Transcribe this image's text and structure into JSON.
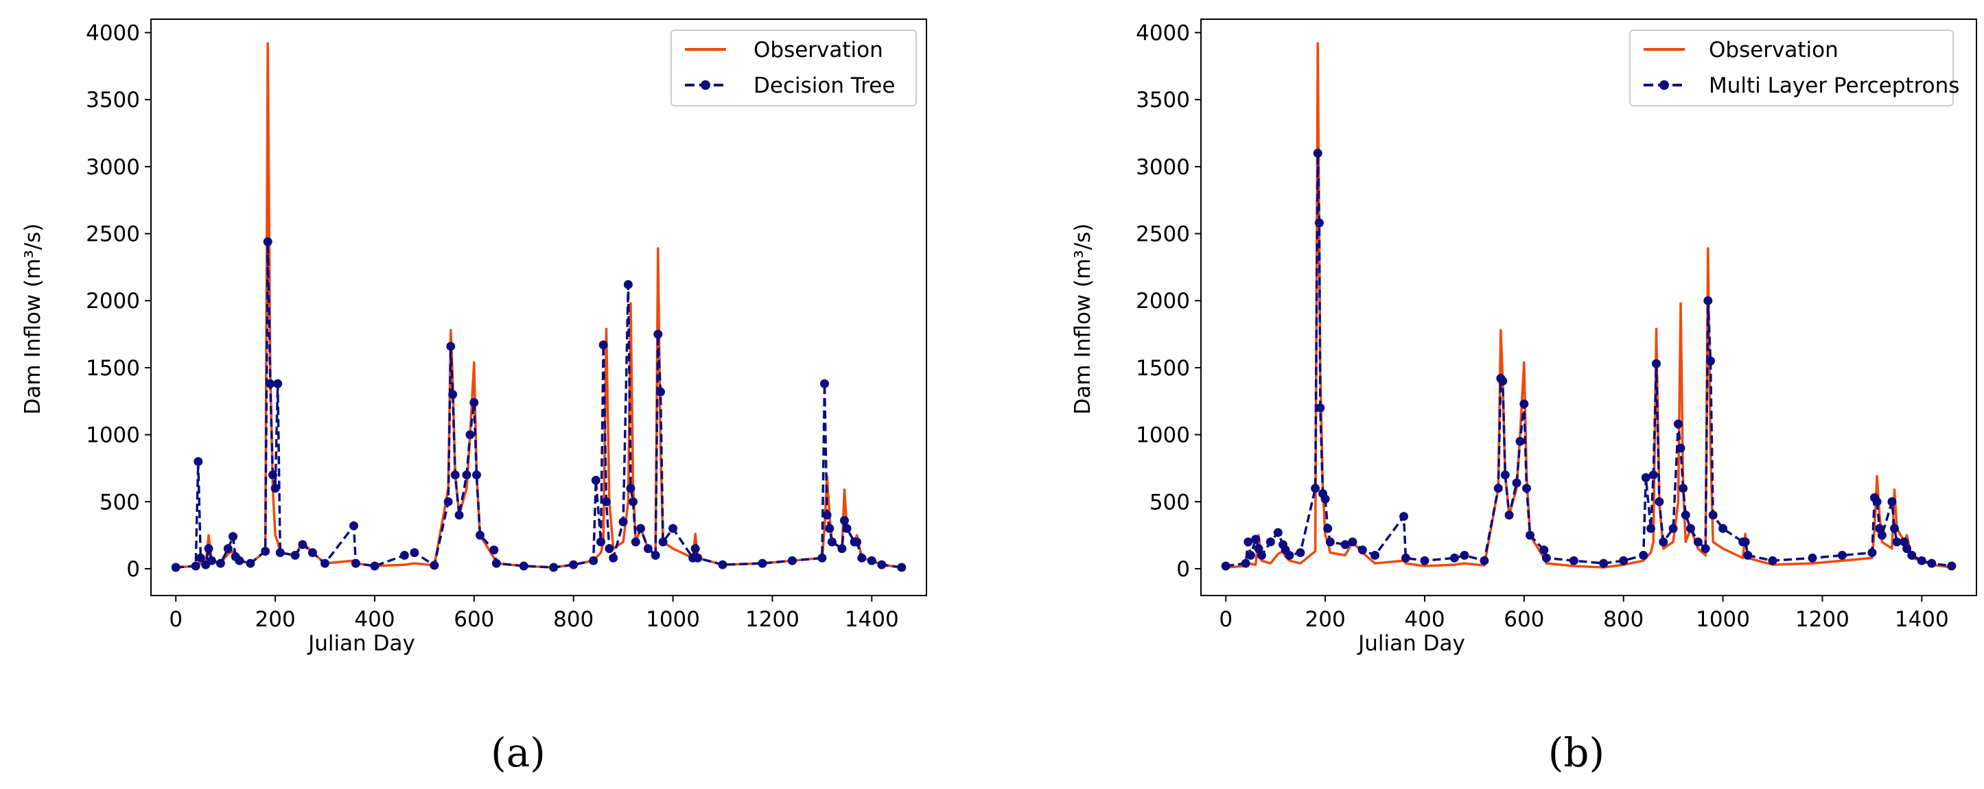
{
  "chart_data": [
    {
      "type": "line",
      "panel_label": "(a)",
      "xlabel": "Julian Day",
      "ylabel": "Dam Inflow (m³/s)",
      "xlim": [
        -50,
        1510
      ],
      "ylim": [
        -200,
        4100
      ],
      "xticks": [
        "0",
        "200",
        "400",
        "600",
        "800",
        "1000",
        "1200",
        "1400"
      ],
      "yticks": [
        "0",
        "500",
        "1000",
        "1500",
        "2000",
        "2500",
        "3000",
        "3500",
        "4000"
      ],
      "legend_position": "top-right",
      "observation": {
        "name": "Observation",
        "color": "#f04a0a",
        "x": [
          0,
          40,
          45,
          60,
          66,
          72,
          90,
          105,
          115,
          120,
          128,
          150,
          180,
          185,
          190,
          195,
          200,
          205,
          210,
          240,
          255,
          275,
          300,
          358,
          362,
          400,
          460,
          480,
          520,
          548,
          553,
          557,
          562,
          570,
          585,
          592,
          600,
          605,
          612,
          640,
          645,
          700,
          760,
          800,
          840,
          855,
          860,
          866,
          872,
          880,
          900,
          910,
          915,
          920,
          925,
          935,
          950,
          965,
          970,
          975,
          980,
          1000,
          1040,
          1045,
          1050,
          1100,
          1180,
          1240,
          1300,
          1305,
          1310,
          1315,
          1320,
          1340,
          1345,
          1350,
          1365,
          1370,
          1380,
          1400,
          1420,
          1460
        ],
        "y": [
          10,
          20,
          40,
          30,
          250,
          60,
          40,
          110,
          130,
          90,
          60,
          40,
          130,
          3920,
          1500,
          600,
          250,
          200,
          120,
          100,
          200,
          120,
          40,
          60,
          40,
          20,
          30,
          40,
          25,
          600,
          1780,
          1400,
          700,
          400,
          600,
          1000,
          1540,
          700,
          250,
          80,
          40,
          20,
          10,
          30,
          60,
          120,
          200,
          1790,
          500,
          150,
          200,
          500,
          1980,
          600,
          200,
          300,
          150,
          100,
          2390,
          900,
          200,
          150,
          80,
          260,
          80,
          30,
          40,
          60,
          80,
          300,
          690,
          400,
          200,
          150,
          590,
          300,
          200,
          250,
          80,
          60,
          30,
          10
        ]
      },
      "model": {
        "name": "Decision Tree",
        "color": "#0d0d80",
        "x": [
          0,
          40,
          45,
          50,
          60,
          66,
          72,
          90,
          105,
          115,
          120,
          128,
          150,
          180,
          185,
          190,
          195,
          200,
          205,
          210,
          240,
          255,
          275,
          300,
          358,
          362,
          400,
          460,
          480,
          520,
          548,
          553,
          557,
          562,
          570,
          585,
          592,
          600,
          605,
          612,
          640,
          645,
          700,
          760,
          800,
          840,
          845,
          855,
          860,
          866,
          872,
          880,
          900,
          910,
          915,
          920,
          925,
          935,
          950,
          965,
          970,
          975,
          980,
          1000,
          1040,
          1045,
          1050,
          1100,
          1180,
          1240,
          1300,
          1305,
          1310,
          1315,
          1320,
          1340,
          1345,
          1350,
          1365,
          1370,
          1380,
          1400,
          1420,
          1460
        ],
        "y": [
          10,
          20,
          800,
          80,
          30,
          150,
          60,
          40,
          150,
          240,
          90,
          60,
          40,
          130,
          2440,
          1380,
          700,
          600,
          1380,
          120,
          100,
          180,
          120,
          40,
          320,
          40,
          20,
          100,
          120,
          25,
          500,
          1660,
          1300,
          700,
          400,
          700,
          1000,
          1240,
          700,
          250,
          140,
          40,
          20,
          10,
          30,
          60,
          660,
          200,
          1670,
          500,
          150,
          80,
          350,
          2120,
          600,
          500,
          200,
          300,
          150,
          100,
          1750,
          1320,
          200,
          300,
          80,
          150,
          80,
          30,
          40,
          60,
          80,
          1380,
          400,
          300,
          200,
          150,
          360,
          300,
          200,
          200,
          80,
          60,
          30,
          10
        ]
      }
    },
    {
      "type": "line",
      "panel_label": "(b)",
      "xlabel": "Julian Day",
      "ylabel": "Dam Inflow (m³/s)",
      "xlim": [
        -50,
        1510
      ],
      "ylim": [
        -200,
        4100
      ],
      "xticks": [
        "0",
        "200",
        "400",
        "600",
        "800",
        "1000",
        "1200",
        "1400"
      ],
      "yticks": [
        "0",
        "500",
        "1000",
        "1500",
        "2000",
        "2500",
        "3000",
        "3500",
        "4000"
      ],
      "legend_position": "top-right",
      "observation": {
        "name": "Observation",
        "color": "#f04a0a",
        "x": [
          0,
          40,
          45,
          60,
          66,
          72,
          90,
          105,
          115,
          120,
          128,
          150,
          180,
          185,
          190,
          195,
          200,
          205,
          210,
          240,
          255,
          275,
          300,
          358,
          362,
          400,
          460,
          480,
          520,
          548,
          553,
          557,
          562,
          570,
          585,
          592,
          600,
          605,
          612,
          640,
          645,
          700,
          760,
          800,
          840,
          855,
          860,
          866,
          872,
          880,
          900,
          910,
          915,
          920,
          925,
          935,
          950,
          965,
          970,
          975,
          980,
          1000,
          1040,
          1045,
          1050,
          1100,
          1180,
          1240,
          1300,
          1305,
          1310,
          1315,
          1320,
          1340,
          1345,
          1350,
          1365,
          1370,
          1380,
          1400,
          1420,
          1460
        ],
        "y": [
          10,
          20,
          40,
          30,
          250,
          60,
          40,
          110,
          130,
          90,
          60,
          40,
          130,
          3920,
          1500,
          600,
          250,
          200,
          120,
          100,
          200,
          120,
          40,
          60,
          40,
          20,
          30,
          40,
          25,
          600,
          1780,
          1400,
          700,
          400,
          600,
          1000,
          1540,
          700,
          250,
          80,
          40,
          20,
          10,
          30,
          60,
          120,
          200,
          1790,
          500,
          150,
          200,
          500,
          1980,
          600,
          200,
          300,
          150,
          100,
          2390,
          900,
          200,
          150,
          80,
          260,
          80,
          30,
          40,
          60,
          80,
          300,
          690,
          400,
          200,
          150,
          590,
          300,
          200,
          250,
          80,
          60,
          30,
          10
        ]
      },
      "model": {
        "name": "Multi Layer Perceptrons",
        "color": "#0d0d80",
        "x": [
          0,
          40,
          45,
          50,
          60,
          66,
          72,
          90,
          105,
          115,
          120,
          128,
          150,
          180,
          185,
          188,
          190,
          195,
          200,
          205,
          210,
          240,
          255,
          275,
          300,
          358,
          362,
          400,
          460,
          480,
          520,
          548,
          553,
          557,
          562,
          570,
          585,
          592,
          600,
          605,
          612,
          640,
          645,
          700,
          760,
          800,
          840,
          845,
          855,
          860,
          866,
          872,
          880,
          900,
          910,
          915,
          920,
          925,
          935,
          950,
          965,
          970,
          975,
          980,
          1000,
          1040,
          1045,
          1050,
          1100,
          1180,
          1240,
          1300,
          1305,
          1310,
          1315,
          1320,
          1340,
          1345,
          1350,
          1365,
          1370,
          1380,
          1400,
          1420,
          1460
        ],
        "y": [
          20,
          40,
          200,
          100,
          220,
          150,
          100,
          200,
          270,
          180,
          140,
          100,
          120,
          600,
          3100,
          2580,
          1200,
          560,
          520,
          300,
          200,
          180,
          200,
          140,
          100,
          390,
          80,
          60,
          80,
          100,
          60,
          600,
          1420,
          1400,
          700,
          400,
          640,
          950,
          1230,
          600,
          250,
          140,
          80,
          60,
          40,
          60,
          100,
          680,
          300,
          700,
          1530,
          500,
          200,
          300,
          1080,
          900,
          600,
          400,
          300,
          200,
          150,
          2000,
          1550,
          400,
          300,
          200,
          200,
          100,
          60,
          80,
          100,
          120,
          530,
          500,
          300,
          250,
          500,
          300,
          200,
          200,
          150,
          100,
          60,
          40,
          20
        ]
      }
    }
  ]
}
